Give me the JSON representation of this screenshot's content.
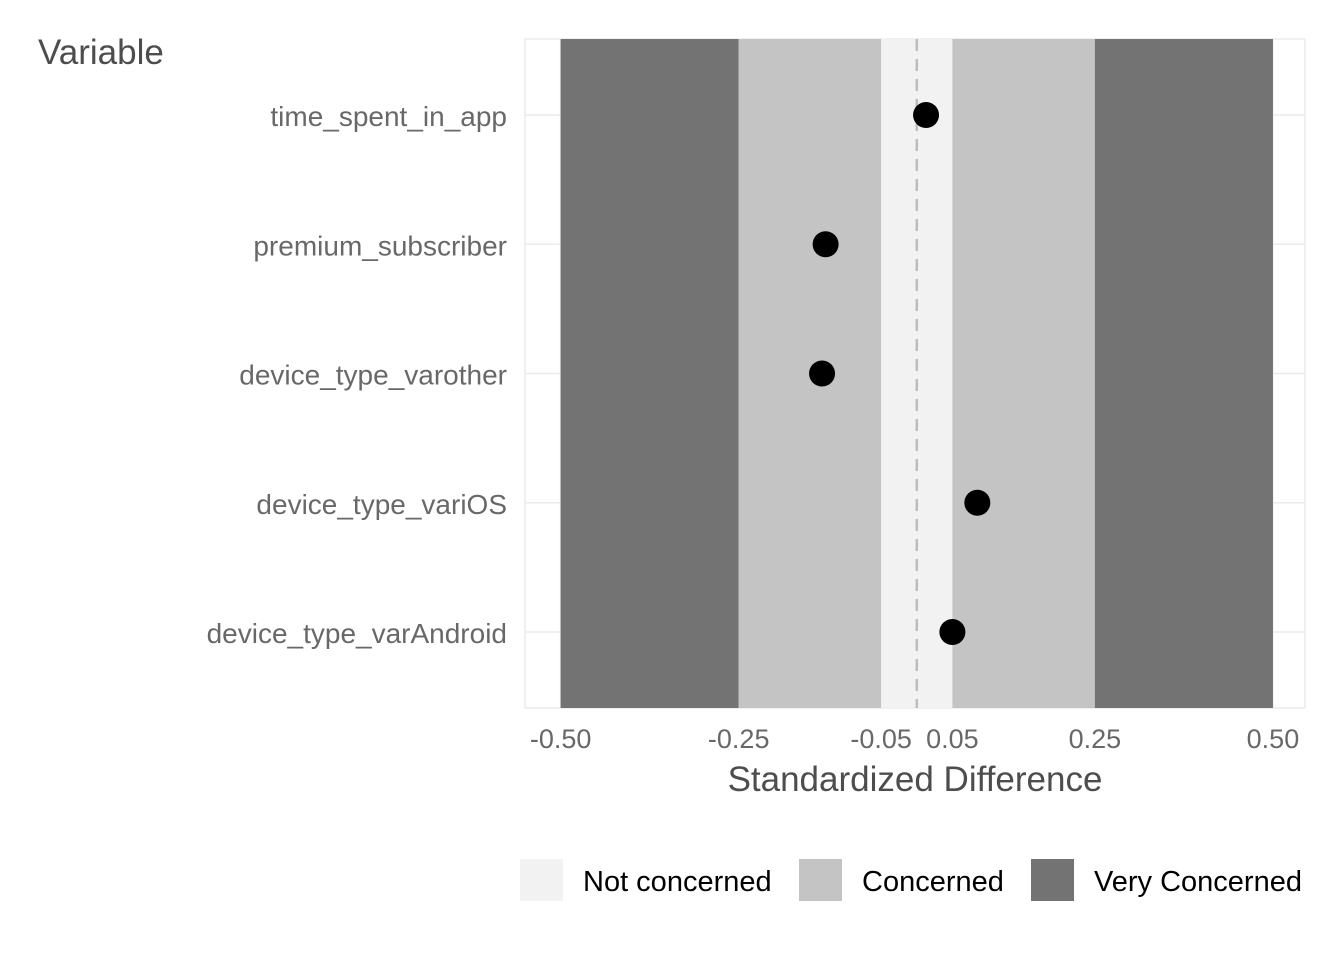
{
  "chart_data": {
    "type": "scatter",
    "title": "",
    "ylabel": "Variable",
    "xlabel": "Standardized Difference",
    "xlim": [
      -0.55,
      0.545
    ],
    "x_ticks": [
      -0.5,
      -0.25,
      -0.05,
      0.05,
      0.25,
      0.5
    ],
    "x_tick_labels": [
      "-0.50",
      "-0.25",
      "-0.05",
      "0.05",
      "0.25",
      "0.50"
    ],
    "categories": [
      "time_spent_in_app",
      "premium_subscriber",
      "device_type_varother",
      "device_type_variOS",
      "device_type_varAndroid"
    ],
    "values": [
      0.013,
      -0.128,
      -0.133,
      0.085,
      0.05
    ],
    "reference_line": 0,
    "bands": [
      {
        "name": "Very Concerned",
        "from": -0.5,
        "to": -0.25,
        "color": "#737373"
      },
      {
        "name": "Concerned",
        "from": -0.25,
        "to": -0.05,
        "color": "#c4c4c4"
      },
      {
        "name": "Not concerned",
        "from": -0.05,
        "to": 0.05,
        "color": "#f2f2f2"
      },
      {
        "name": "Concerned",
        "from": 0.05,
        "to": 0.25,
        "color": "#c4c4c4"
      },
      {
        "name": "Very Concerned",
        "from": 0.25,
        "to": 0.5,
        "color": "#737373"
      }
    ],
    "legend": {
      "position": "bottom",
      "items": [
        {
          "label": "Not concerned",
          "color": "#f2f2f2"
        },
        {
          "label": "Concerned",
          "color": "#c4c4c4"
        },
        {
          "label": "Very Concerned",
          "color": "#737373"
        }
      ]
    },
    "grid": true,
    "point_color": "#000000"
  }
}
